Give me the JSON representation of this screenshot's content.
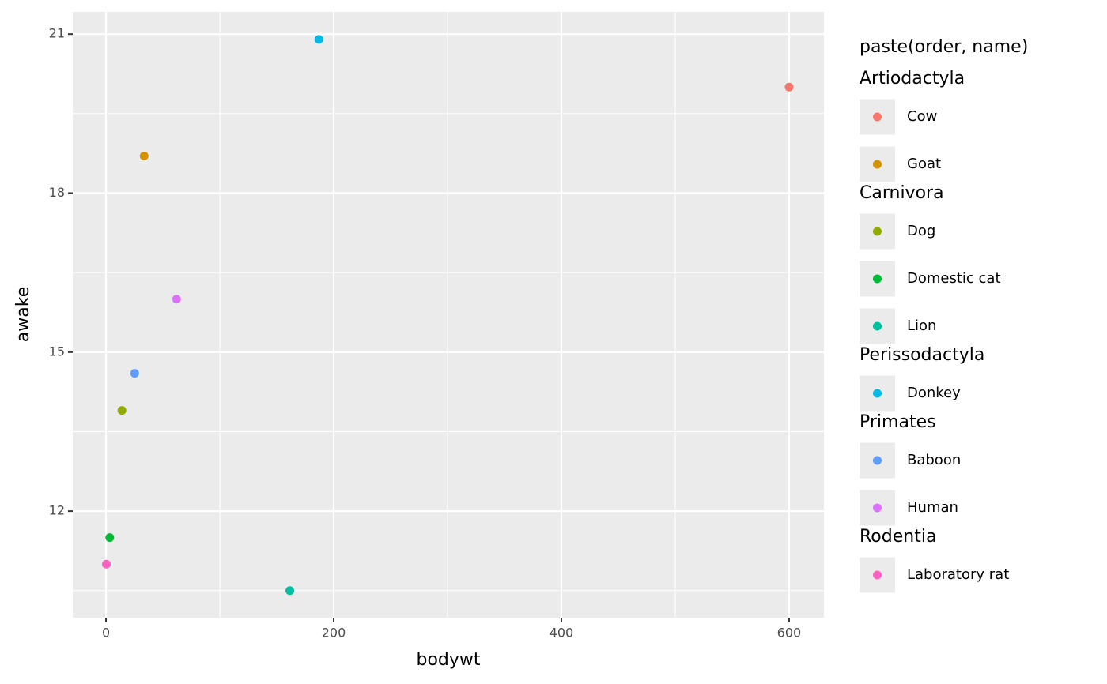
{
  "chart_data": {
    "type": "scatter",
    "x_label": "bodywt",
    "y_label": "awake",
    "legend_title": "paste(order, name)",
    "xlim": [
      -29.2,
      630.6
    ],
    "xticks": [
      0,
      200,
      400,
      600
    ],
    "x_minor_ticks": [
      100,
      300,
      500
    ],
    "ylim": [
      9.99,
      21.42
    ],
    "yticks": [
      12,
      15,
      18,
      21
    ],
    "y_minor_ticks": [
      10.5,
      13.5,
      16.5,
      19.5
    ],
    "grid": true,
    "legend": "right",
    "series": [
      {
        "name": "Cow",
        "order": "Artiodactyla",
        "color": "#F8766D",
        "x": [
          600
        ],
        "values": [
          20.0
        ]
      },
      {
        "name": "Goat",
        "order": "Artiodactyla",
        "color": "#D39200",
        "x": [
          33.5
        ],
        "values": [
          18.7
        ]
      },
      {
        "name": "Dog",
        "order": "Carnivora",
        "color": "#93AA00",
        "x": [
          14
        ],
        "values": [
          13.9
        ]
      },
      {
        "name": "Domestic cat",
        "order": "Carnivora",
        "color": "#00BA38",
        "x": [
          3.3
        ],
        "values": [
          11.5
        ]
      },
      {
        "name": "Lion",
        "order": "Carnivora",
        "color": "#00C19F",
        "x": [
          161.5
        ],
        "values": [
          10.5
        ]
      },
      {
        "name": "Donkey",
        "order": "Perissodactyla",
        "color": "#00B9E3",
        "x": [
          187
        ],
        "values": [
          20.9
        ]
      },
      {
        "name": "Baboon",
        "order": "Primates",
        "color": "#619CFF",
        "x": [
          25.2
        ],
        "values": [
          14.6
        ]
      },
      {
        "name": "Human",
        "order": "Primates",
        "color": "#DB72FB",
        "x": [
          62
        ],
        "values": [
          16.0
        ]
      },
      {
        "name": "Laboratory rat",
        "order": "Rodentia",
        "color": "#FF61C3",
        "x": [
          0.3
        ],
        "values": [
          11.0
        ]
      }
    ]
  }
}
